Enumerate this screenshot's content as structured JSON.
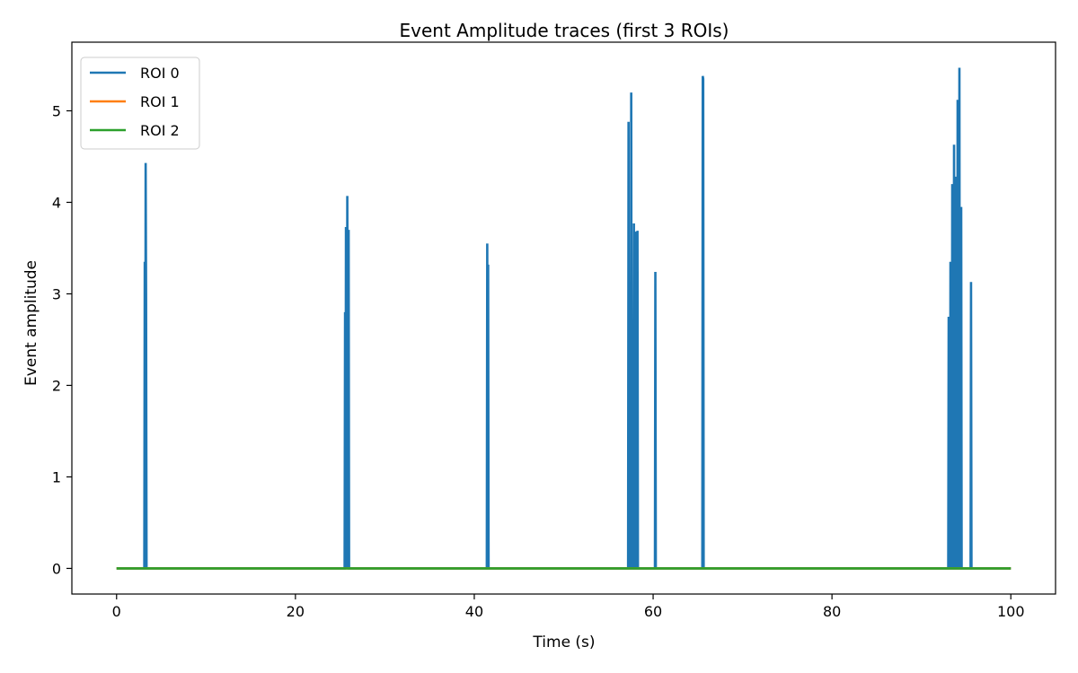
{
  "chart_data": {
    "type": "line",
    "title": "Event Amplitude traces (first 3 ROIs)",
    "xlabel": "Time (s)",
    "ylabel": "Event amplitude",
    "xlim": [
      -5,
      105
    ],
    "ylim": [
      -0.28,
      5.75
    ],
    "x_ticks": [
      0,
      20,
      40,
      60,
      80,
      100
    ],
    "y_ticks": [
      0,
      1,
      2,
      3,
      4,
      5
    ],
    "x_tick_labels": [
      "0",
      "20",
      "40",
      "60",
      "80",
      "100"
    ],
    "y_tick_labels": [
      "0",
      "1",
      "2",
      "3",
      "4",
      "5"
    ],
    "grid": false,
    "legend_position": "top-left",
    "series": [
      {
        "name": "ROI 0",
        "color": "#1f77b4",
        "x": [
          0,
          3.1,
          3.15,
          3.2,
          3.25,
          3.3,
          3.35,
          3.4,
          25.5,
          25.55,
          25.6,
          25.65,
          25.75,
          25.8,
          25.9,
          25.95,
          26.0,
          26.05,
          26.15,
          26.2,
          41.4,
          41.45,
          41.5,
          41.55,
          41.6,
          41.65,
          41.7,
          57.2,
          57.25,
          57.3,
          57.35,
          57.5,
          57.55,
          57.6,
          57.65,
          57.8,
          57.85,
          57.9,
          58.0,
          58.05,
          58.1,
          58.2,
          58.25,
          58.3,
          58.4,
          58.45,
          58.5,
          58.55,
          60.2,
          60.25,
          60.3,
          60.35,
          60.4,
          65.5,
          65.55,
          65.6,
          65.65,
          65.7,
          65.75,
          65.8,
          93.0,
          93.05,
          93.1,
          93.2,
          93.25,
          93.3,
          93.4,
          93.45,
          93.5,
          93.6,
          93.65,
          93.7,
          93.8,
          93.85,
          93.9,
          94.0,
          94.05,
          94.1,
          94.2,
          94.25,
          94.3,
          94.4,
          94.45,
          94.5,
          94.6,
          94.65,
          94.7,
          95.5,
          95.55,
          95.6,
          95.65,
          95.7,
          100
        ],
        "y": [
          0,
          0,
          3.35,
          0,
          4.43,
          3.0,
          0,
          0,
          0,
          2.8,
          0,
          3.73,
          0,
          4.07,
          0,
          3.7,
          0,
          0,
          0,
          0,
          0,
          3.55,
          0,
          3.32,
          0,
          0,
          0,
          0,
          4.88,
          0,
          0,
          0,
          5.2,
          0,
          0,
          0,
          3.77,
          0,
          0,
          3.68,
          0,
          0,
          3.69,
          0,
          0,
          0,
          0,
          0,
          0,
          3.24,
          0,
          0,
          0,
          0,
          5.38,
          5.35,
          0,
          0,
          0,
          0,
          0,
          2.75,
          0,
          0,
          3.35,
          0,
          0,
          4.2,
          0,
          0,
          4.63,
          0,
          0,
          4.28,
          0,
          0,
          5.12,
          0,
          0,
          5.47,
          0,
          0,
          3.95,
          0,
          0,
          0,
          0,
          0,
          3.13,
          0,
          0,
          0,
          0
        ]
      },
      {
        "name": "ROI 1",
        "color": "#ff7f0e",
        "x": [
          0,
          100
        ],
        "y": [
          0,
          0
        ]
      },
      {
        "name": "ROI 2",
        "color": "#2ca02c",
        "x": [
          0,
          100
        ],
        "y": [
          0,
          0
        ]
      }
    ]
  }
}
